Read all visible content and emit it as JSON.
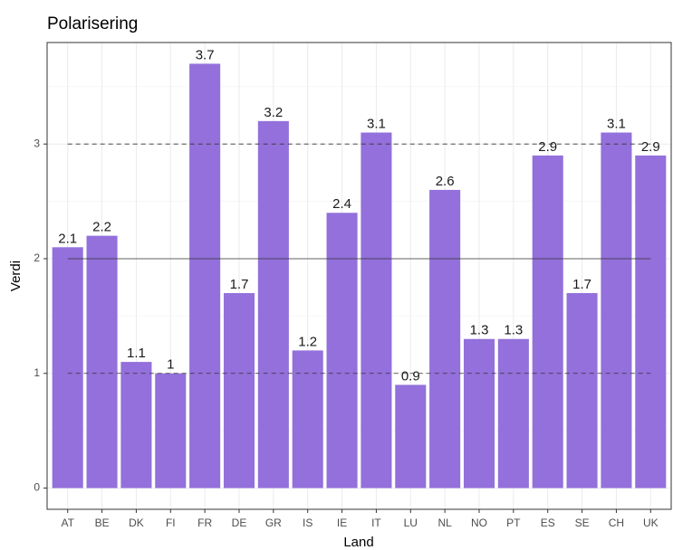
{
  "chart_data": {
    "type": "bar",
    "title": "Polarisering",
    "x_label": "Land",
    "y_label": "Verdi",
    "categories": [
      "AT",
      "BE",
      "DK",
      "FI",
      "FR",
      "DE",
      "GR",
      "IS",
      "IE",
      "IT",
      "LU",
      "NL",
      "NO",
      "PT",
      "ES",
      "SE",
      "CH",
      "UK"
    ],
    "values": [
      2.1,
      2.2,
      1.1,
      1,
      3.7,
      1.7,
      3.2,
      1.2,
      2.4,
      3.1,
      0.9,
      2.6,
      1.3,
      1.3,
      2.9,
      1.7,
      3.1,
      2.9
    ],
    "color": "#9370db",
    "ylim": [
      -0.185,
      3.885
    ],
    "yticks": [
      0,
      1,
      2,
      3
    ],
    "grid": true,
    "hlines": [
      {
        "value": 1,
        "dashed": true
      },
      {
        "value": 2,
        "dashed": false
      },
      {
        "value": 3,
        "dashed": true
      }
    ]
  }
}
